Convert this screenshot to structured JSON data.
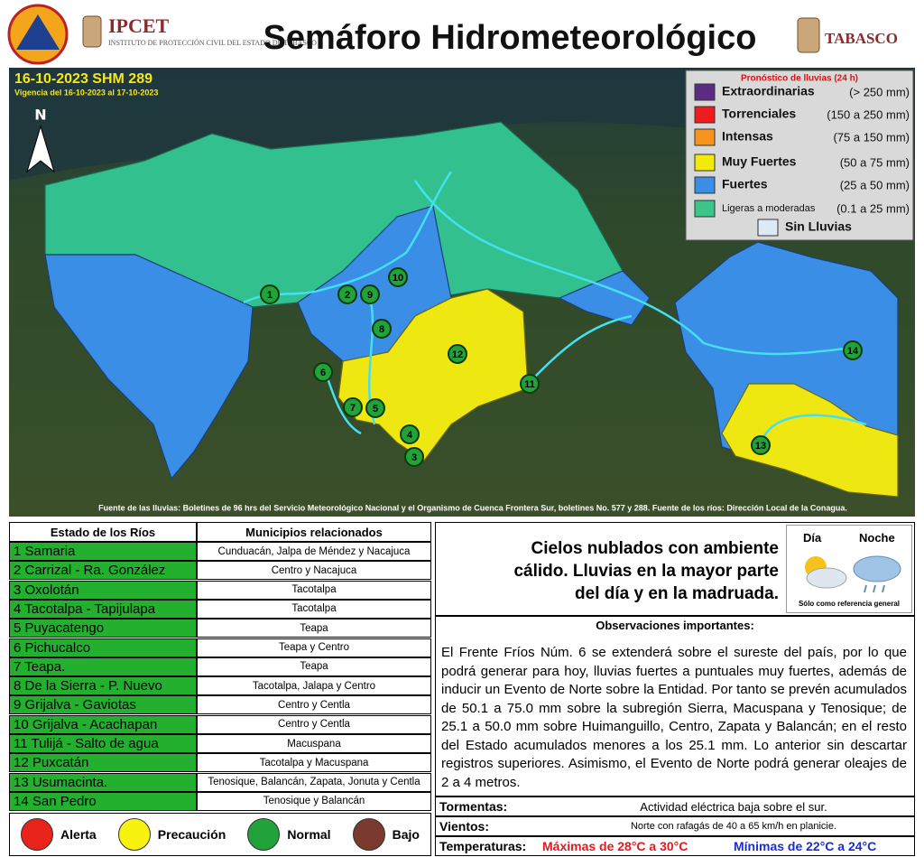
{
  "header": {
    "institution": "IPCET",
    "institution_full": "INSTITUTO DE PROTECCIÓN CIVIL DEL ESTADO DE TABASCO",
    "title": "Semáforo Hidrometeorológico",
    "state": "TABASCO"
  },
  "map": {
    "date_code": "16-10-2023 SHM 289",
    "validity": "Vigencia del 16-10-2023 al 17-10-2023",
    "north": "N",
    "stations": [
      "1",
      "2",
      "3",
      "4",
      "5",
      "6",
      "7",
      "8",
      "9",
      "10",
      "11",
      "12",
      "13",
      "14"
    ],
    "source": "Fuente de las lluvias: Boletines de 96 hrs del Servicio Meteorológico Nacional y el Organismo de Cuenca Frontera Sur, boletines No. 577 y 288. Fuente de los ríos: Dirección Local de la Conagua."
  },
  "rain_legend": {
    "title": "Pronóstico de lluvias (24 h)",
    "items": [
      {
        "label": "Extraordinarias",
        "range": "(> 250 mm)",
        "color": "#5b2c83"
      },
      {
        "label": "Torrenciales",
        "range": "(150 a 250 mm)",
        "color": "#ee1c1c"
      },
      {
        "label": "Intensas",
        "range": "(75 a 150 mm)",
        "color": "#f7941d"
      },
      {
        "label": "Muy Fuertes",
        "range": "(50 a 75 mm)",
        "color": "#f2ea0a"
      },
      {
        "label": "Fuertes",
        "range": "(25 a 50 mm)",
        "color": "#3a8ee6"
      },
      {
        "label": "Ligeras a moderadas",
        "range": "(0.1 a 25 mm)",
        "color": "#3cc48a"
      },
      {
        "label": "Sin Lluvias",
        "color": "#dde9f5"
      }
    ]
  },
  "rivers": {
    "headers": [
      "Estado de los Ríos",
      "Municipios relacionados"
    ],
    "rows": [
      [
        "1 Samaria",
        "Cunduacán, Jalpa de Méndez y Nacajuca"
      ],
      [
        "2 Carrizal - Ra. González",
        "Centro y Nacajuca"
      ],
      [
        "3 Oxolotán",
        "Tacotalpa"
      ],
      [
        "4 Tacotalpa - Tapijulapa",
        "Tacotalpa"
      ],
      [
        "5 Puyacatengo",
        "Teapa"
      ],
      [
        "6 Pichucalco",
        "Teapa y Centro"
      ],
      [
        "7 Teapa.",
        "Teapa"
      ],
      [
        "8 De la Sierra - P. Nuevo",
        "Tacotalpa, Jalapa y Centro"
      ],
      [
        "9 Grijalva - Gaviotas",
        "Centro y Centla"
      ],
      [
        "10 Grijalva - Acachapan",
        "Centro y Centla"
      ],
      [
        "11 Tulijá - Salto de agua",
        "Macuspana"
      ],
      [
        "12 Puxcatán",
        "Tacotalpa y Macuspana"
      ],
      [
        "13 Usumacinta.",
        "Tenosique, Balancán, Zapata, Jonuta y Centla"
      ],
      [
        "14 San Pedro",
        "Tenosique y Balancán"
      ]
    ],
    "status_legend": [
      {
        "label": "Alerta",
        "color": "#e8231c"
      },
      {
        "label": "Precaución",
        "color": "#f7f20f"
      },
      {
        "label": "Normal",
        "color": "#22a23a"
      },
      {
        "label": "Bajo",
        "color": "#7a3b2e"
      }
    ]
  },
  "forecast": {
    "summary": [
      "Cielos nublados con ambiente",
      "cálido. Lluvias en la mayor parte",
      "del día y en la madruada."
    ],
    "day": "Día",
    "night": "Noche",
    "note": "Sólo como referencia general"
  },
  "observations": {
    "title": "Observaciones importantes:",
    "text": "El Frente Fríos Núm. 6 se extenderá sobre el sureste del país, por lo que podrá generar para hoy, lluvias fuertes a puntuales muy fuertes, además de inducir un Evento de Norte sobre la Entidad. Por tanto se prevén acumulados de 50.1 a 75.0 mm sobre la subregión Sierra, Macuspana y Tenosique; de 25.1 a 50.0 mm sobre Huimanguillo, Centro, Zapata y Balancán; en el resto del Estado acumulados menores a los 25.1 mm. Lo anterior sin descartar registros superiores. Asimismo, el Evento de Norte podrá generar oleajes de 2 a 4 metros."
  },
  "conditions": {
    "storms_label": "Tormentas:",
    "storms": "Actividad eléctrica baja sobre el sur.",
    "winds_label": "Vientos:",
    "winds": "Norte con rafagás de 40 a 65 km/h en planicie.",
    "temps_label": "Temperaturas:",
    "max": "Máximas de 28°C a 30°C",
    "min": "Mínimas de 22°C a 24°C"
  }
}
